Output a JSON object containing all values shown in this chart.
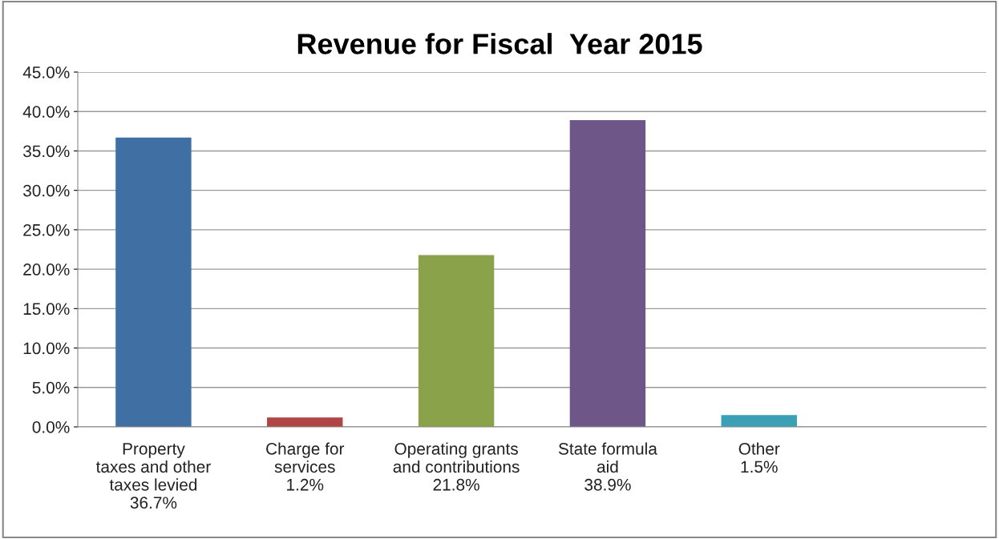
{
  "chart_data": {
    "type": "bar",
    "title": "Revenue for Fiscal  Year 2015",
    "categories": [
      "Property\ntaxes and other\ntaxes levied\n36.7%",
      "Charge for\nservices\n1.2%",
      "Operating grants\nand contributions\n21.8%",
      "State formula\naid\n38.9%",
      "Other\n1.5%",
      null
    ],
    "values": [
      36.7,
      1.2,
      21.8,
      38.9,
      1.5,
      null
    ],
    "colors": [
      "#3f6fa3",
      "#b04545",
      "#8aa34a",
      "#6f5688",
      "#3ba0b5",
      "#888888"
    ],
    "ylim": [
      0,
      45
    ],
    "yticks": [
      {
        "value": 0,
        "label": "0.0%"
      },
      {
        "value": 5,
        "label": "5.0%"
      },
      {
        "value": 10,
        "label": "10.0%"
      },
      {
        "value": 15,
        "label": "15.0%"
      },
      {
        "value": 20,
        "label": "20.0%"
      },
      {
        "value": 25,
        "label": "25.0%"
      },
      {
        "value": 30,
        "label": "30.0%"
      },
      {
        "value": 35,
        "label": "35.0%"
      },
      {
        "value": 40,
        "label": "40.0%"
      },
      {
        "value": 45,
        "label": "45.0%"
      }
    ],
    "grid": "y",
    "legend": false
  }
}
